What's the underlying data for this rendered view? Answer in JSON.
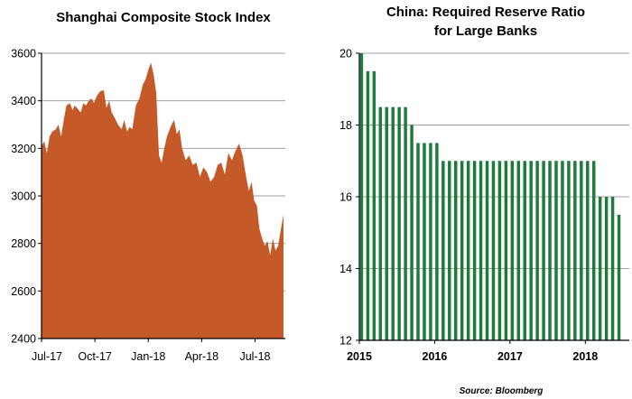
{
  "source": "Source: Bloomberg",
  "colors": {
    "area": "#c55a28",
    "bars": "#1e7b3c",
    "grid": "#a0a0a0",
    "axis": "#000000"
  },
  "chart_data": [
    {
      "type": "area",
      "title": "Shanghai Composite Stock Index",
      "xlabel": "",
      "ylabel": "",
      "ylim": [
        2400,
        3600
      ],
      "yticks": [
        2400,
        2600,
        2800,
        3000,
        3200,
        3400,
        3600
      ],
      "ytick_labels": [
        "2400",
        "2600",
        "2800",
        "3000",
        "3200",
        "3400",
        "3600"
      ],
      "xlim": [
        0,
        13.7
      ],
      "xticks": [
        0,
        3,
        6,
        9,
        12
      ],
      "xtick_labels": [
        "Jul-17",
        "Oct-17",
        "Jan-18",
        "Apr-18",
        "Jul-18"
      ],
      "grid": true,
      "x": [
        0,
        0.15,
        0.3,
        0.45,
        0.6,
        0.8,
        0.95,
        1.1,
        1.25,
        1.4,
        1.6,
        1.75,
        1.85,
        2.0,
        2.2,
        2.35,
        2.5,
        2.65,
        2.8,
        2.95,
        3.1,
        3.3,
        3.5,
        3.65,
        3.8,
        3.95,
        4.1,
        4.3,
        4.5,
        4.65,
        4.8,
        4.95,
        5.1,
        5.3,
        5.5,
        5.7,
        5.85,
        6.0,
        6.15,
        6.3,
        6.45,
        6.6,
        6.75,
        6.9,
        7.05,
        7.25,
        7.45,
        7.6,
        7.75,
        7.9,
        8.1,
        8.3,
        8.5,
        8.7,
        8.9,
        9.1,
        9.3,
        9.5,
        9.7,
        9.9,
        10.1,
        10.3,
        10.5,
        10.7,
        10.9,
        11.1,
        11.3,
        11.5,
        11.65,
        11.8,
        11.95,
        12.1,
        12.25,
        12.4,
        12.55,
        12.7,
        12.85,
        13.0,
        13.15,
        13.3,
        13.45,
        13.6
      ],
      "values": [
        3210,
        3230,
        3180,
        3250,
        3270,
        3280,
        3300,
        3250,
        3320,
        3380,
        3390,
        3360,
        3380,
        3370,
        3350,
        3390,
        3380,
        3400,
        3410,
        3390,
        3420,
        3440,
        3445,
        3370,
        3400,
        3350,
        3330,
        3300,
        3280,
        3320,
        3270,
        3290,
        3280,
        3380,
        3410,
        3470,
        3490,
        3530,
        3560,
        3510,
        3430,
        3170,
        3140,
        3200,
        3250,
        3290,
        3320,
        3260,
        3280,
        3200,
        3150,
        3170,
        3130,
        3140,
        3080,
        3120,
        3100,
        3060,
        3080,
        3130,
        3140,
        3090,
        3180,
        3150,
        3190,
        3220,
        3170,
        3080,
        3020,
        3060,
        2980,
        2960,
        2860,
        2820,
        2790,
        2810,
        2750,
        2820,
        2770,
        2790,
        2860,
        2920
      ]
    },
    {
      "type": "bar",
      "title": "China: Required Reserve Ratio",
      "subtitle": "for Large Banks",
      "xlabel": "",
      "ylabel": "",
      "ylim": [
        12,
        20
      ],
      "yticks": [
        12,
        14,
        16,
        18,
        20
      ],
      "ytick_labels": [
        "12",
        "14",
        "16",
        "18",
        "20"
      ],
      "xlim": [
        0,
        43
      ],
      "xticks": [
        0,
        12,
        24,
        36
      ],
      "xtick_labels": [
        "2015",
        "2016",
        "2017",
        "2018"
      ],
      "grid": true,
      "values": [
        20,
        19.5,
        19.5,
        18.5,
        18.5,
        18.5,
        18.5,
        18.5,
        18,
        17.5,
        17.5,
        17.5,
        17.5,
        17,
        17,
        17,
        17,
        17,
        17,
        17,
        17,
        17,
        17,
        17,
        17,
        17,
        17,
        17,
        17,
        17,
        17,
        17,
        17,
        17,
        17,
        17,
        17,
        17,
        16,
        16,
        16,
        15.5
      ]
    }
  ]
}
